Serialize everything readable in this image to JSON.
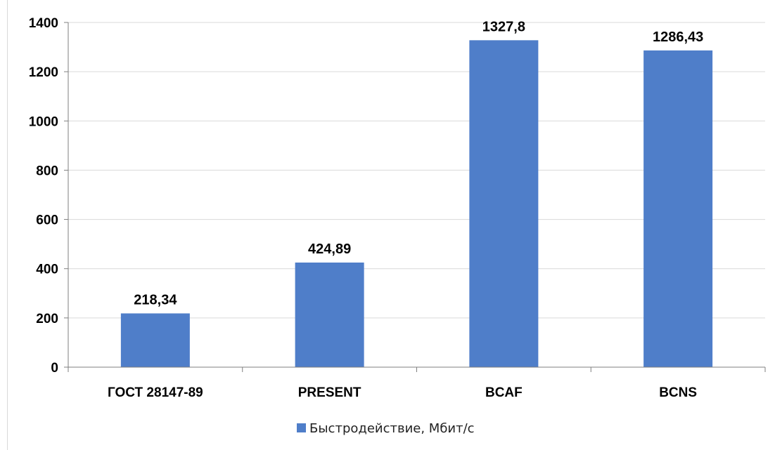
{
  "chart_data": {
    "type": "bar",
    "categories": [
      "ГОСТ 28147-89",
      "PRESENT",
      "BCAF",
      "BCNS"
    ],
    "series": [
      {
        "name": "Быстродействие, Мбит/с",
        "values": [
          218.34,
          424.89,
          1327.8,
          1286.43
        ],
        "labels": [
          "218,34",
          "424,89",
          "1327,8",
          "1286,43"
        ]
      }
    ],
    "yticks": [
      "0",
      "200",
      "400",
      "600",
      "800",
      "1000",
      "1200",
      "1400"
    ],
    "ylim": [
      0,
      1400
    ],
    "grid": true,
    "legend": "bottom",
    "colors": {
      "bar": "#4f7ec9",
      "grid": "#d9d9d9",
      "axis": "#7f7f7f"
    }
  }
}
